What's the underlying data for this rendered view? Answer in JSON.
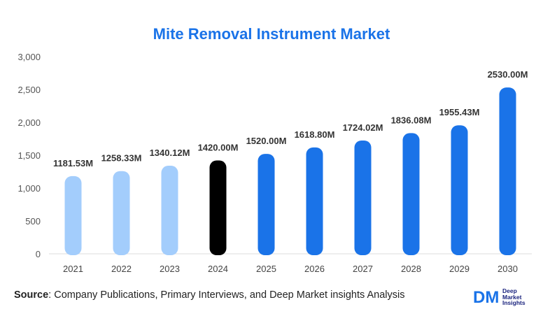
{
  "colors": {
    "title": "#1a73e8",
    "historical": "#a3cdfc",
    "base_year": "#000000",
    "forecast": "#1a73e8",
    "logo": "#1a73e8"
  },
  "source": {
    "label": "Source",
    "text": ": Company Publications, Primary Interviews, and Deep Market insights Analysis"
  },
  "logo": {
    "mark": "DM",
    "lines": [
      "Deep",
      "Market",
      "Insights"
    ]
  },
  "chart_data": {
    "type": "bar",
    "title": "Mite Removal Instrument Market",
    "xlabel": "",
    "ylabel": "",
    "categories": [
      "2021",
      "2022",
      "2023",
      "2024",
      "2025",
      "2026",
      "2027",
      "2028",
      "2029",
      "2030"
    ],
    "values": [
      1181.53,
      1258.33,
      1340.12,
      1420.0,
      1520.0,
      1618.8,
      1724.02,
      1836.08,
      1955.43,
      2530.0
    ],
    "data_labels": [
      "1181.53M",
      "1258.33M",
      "1340.12M",
      "1420.00M",
      "1520.00M",
      "1618.80M",
      "1724.02M",
      "1836.08M",
      "1955.43M",
      "2530.00M"
    ],
    "bar_kind": [
      "historical",
      "historical",
      "historical",
      "base",
      "forecast",
      "forecast",
      "forecast",
      "forecast",
      "forecast",
      "forecast"
    ],
    "ylim": [
      0,
      3000
    ],
    "yticks": [
      0,
      500,
      1000,
      1500,
      2000,
      2500,
      3000
    ],
    "ytick_labels": [
      "0",
      "500",
      "1,000",
      "1,500",
      "2,000",
      "2,500",
      "3,000"
    ],
    "grid": false,
    "legend": "none"
  }
}
